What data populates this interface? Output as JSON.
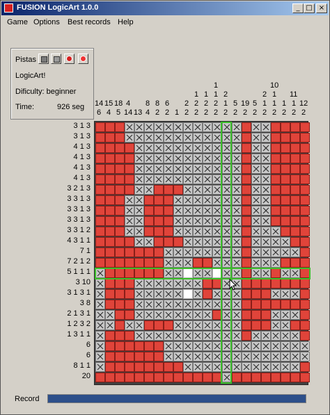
{
  "window": {
    "title": "FUSION LogicArt 1.0.0",
    "buttons": [
      "_",
      "□",
      "×"
    ]
  },
  "menu": [
    "Game",
    "Options",
    "Best records",
    "Help"
  ],
  "panel": {
    "hints_label": "Pistas",
    "game_name": "LogicArt!",
    "difficulty": "Dificulty: beginner",
    "time_label": "Time:",
    "time_value": "926 seg"
  },
  "column_clues": [
    [
      "14",
      "6"
    ],
    [
      "15",
      "4"
    ],
    [
      "18",
      "5"
    ],
    [
      "4",
      "14"
    ],
    [
      "13"
    ],
    [
      "8",
      "4"
    ],
    [
      "8",
      "2"
    ],
    [
      "6",
      "2"
    ],
    [
      "1"
    ],
    [
      "2",
      "2"
    ],
    [
      "1",
      "2",
      "2"
    ],
    [
      "1",
      "2",
      "2"
    ],
    [
      "1",
      "1",
      "2",
      "2"
    ],
    [
      "2",
      "1",
      "2"
    ],
    [
      "5",
      "2"
    ],
    [
      "19",
      "2"
    ],
    [
      "5",
      "2"
    ],
    [
      "2",
      "1",
      "2"
    ],
    [
      "10",
      "1",
      "1",
      "2"
    ],
    [
      "1",
      "2"
    ],
    [
      "11",
      "1",
      "2"
    ],
    [
      "12",
      "2"
    ]
  ],
  "row_clues": [
    "3 1 3",
    "3 1 3",
    "4 1 3",
    "4 1 3",
    "4 1 3",
    "4 1 3",
    "3 2 1 3",
    "3 3 1 3",
    "3 3 1 3",
    "3 3 1 3",
    "3 3 1 2",
    "4 3 1 1",
    "7 1",
    "7 2 1 2",
    "5 1 1 1",
    "3 10",
    "3 1 3 1",
    "3 8",
    "2 1 3 1",
    "1 2 3 2",
    "1 3 1 1",
    "6",
    "6",
    "8 1 1",
    "20"
  ],
  "grid_rows": [
    "FFFXXXXXXXXXXCXFXXFFFF",
    "FFFXXXXXXXXXXCXFXXFFFF",
    "FFFFXXXXXXXXXCXFXXFFFF",
    "FFFFXXXXXXXXXCXFXXFFFF",
    "FFFFXXXXXXXXXCXFXXFFFF",
    "FFFFXXXXXXXXXCXFXXFFFF",
    "FFFFXXFFFXXXXCXFXXFFFF",
    "FFFXXFFFXXXXXCXFXXFFFF",
    "FFFXXFFFXXXXXCXFXXFFFF",
    "FFFXXFFFXXXXXCXFXXFFFF",
    "FFFXXFFFXXXXXCXFXXXFFF",
    "FFFFXXFFFXXXXCXFXXXXFF",
    "FFFFFFFXXXXXXCXFXXXXXF",
    "FFFFFFFXXXFFXCXFXXXFFF",
    "XFFFFFFXXEXXECXFXXFXXF",
    "XFFFXXXXXXXFFCXFFFFFFF",
    "XFFFXXXXXEXFXCXFFFXXXF",
    "XFFFXXXXXXXXXCXFFFFFFF",
    "XXFFXXXXXXXXFCXFFFXXXF",
    "XXFXXFFFXXXXXCXFFFXXFF",
    "XFFFXXXXXXXXXCXFXXXXXF",
    "XFFFFFFXXXXXXCXXXXXXXX",
    "XFFFFFFXXXXXXCXXXXXXXX",
    "XFFFFFFFFXXXXCXXXXXXXF",
    "FFFFFFFFFFFFFCFFFFFFFF"
  ],
  "highlight": {
    "row": 14,
    "col": 12
  },
  "record": {
    "label": "Record",
    "progress": 1.0
  },
  "colors": {
    "fill": "#e0443a",
    "highlight": "#3bbf2a",
    "title_start": "#0a246a",
    "title_end": "#a6caf0"
  }
}
